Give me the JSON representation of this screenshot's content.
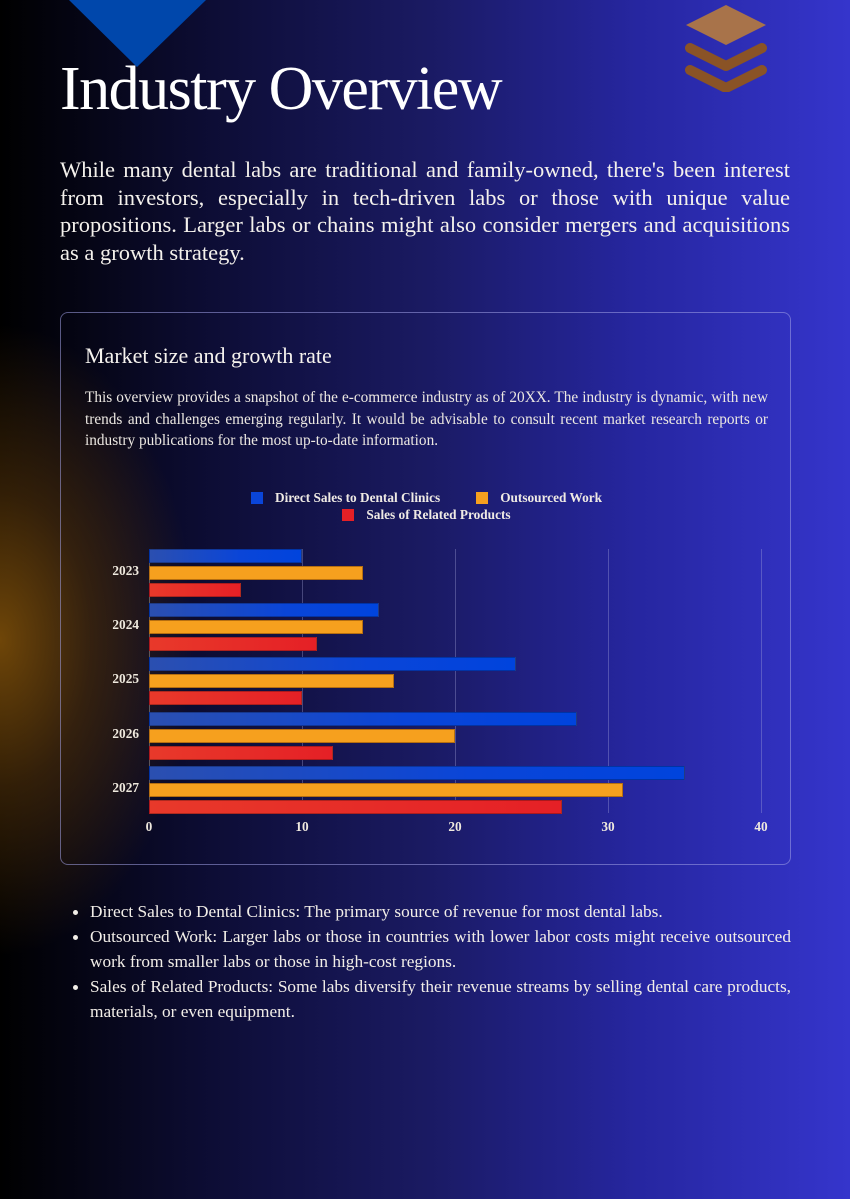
{
  "page": {
    "title": "Industry Overview",
    "intro": "While many dental labs are traditional and family-owned, there's been interest from investors, especially in tech-driven labs or those with unique value propositions. Larger labs or chains might also consider mergers and acquisitions as a growth strategy."
  },
  "decor": {
    "top_triangle_color": "#0047ab",
    "layers_icon": "layers-icon",
    "layers_colors": [
      "#a8734a",
      "#8a5326"
    ]
  },
  "card": {
    "title": "Market size and growth rate",
    "description": "This overview provides a snapshot of the e-commerce industry as of 20XX. The industry is dynamic, with new trends and challenges emerging regularly. It would be advisable to consult recent market research reports or industry publications for the most up-to-date information."
  },
  "chart_data": {
    "type": "bar",
    "orientation": "horizontal",
    "title": "",
    "xlabel": "",
    "ylabel": "",
    "categories": [
      "2023",
      "2024",
      "2025",
      "2026",
      "2027"
    ],
    "series": [
      {
        "name": "Direct Sales to Dental Clinics",
        "color": "#0044dd",
        "values": [
          10,
          15,
          24,
          28,
          35
        ]
      },
      {
        "name": "Outsourced Work",
        "color": "#f6a01e",
        "values": [
          14,
          14,
          16,
          20,
          31
        ]
      },
      {
        "name": "Sales of Related Products",
        "color": "#e52026",
        "values": [
          6,
          11,
          10,
          12,
          27
        ]
      }
    ],
    "xlim": [
      0,
      40
    ],
    "xticks": [
      "0",
      "10",
      "20",
      "30",
      "40"
    ],
    "grid": "vertical",
    "legend_position": "top"
  },
  "bullets": [
    "Direct Sales to Dental Clinics: The primary source of revenue for most dental labs.",
    "Outsourced Work: Larger labs or those in countries with lower labor costs might receive outsourced work from smaller labs or those in high-cost regions.",
    "Sales of Related Products: Some labs diversify their revenue streams by selling dental care products, materials, or even equipment."
  ]
}
